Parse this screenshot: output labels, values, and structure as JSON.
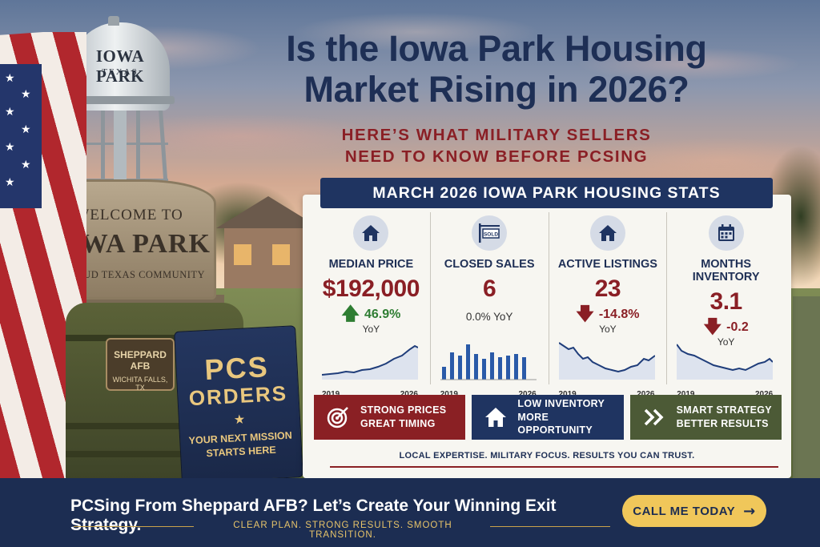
{
  "headline": {
    "line1": "Is the Iowa Park Housing",
    "line2": "Market Rising in 2026?"
  },
  "subheadline": {
    "line1": "HERE’S WHAT MILITARY SELLERS",
    "line2": "NEED TO KNOW BEFORE PCSING"
  },
  "scene": {
    "water_tower": {
      "line1": "IOWA PARK",
      "line2": "TEXAS"
    },
    "welcome_sign": {
      "line1": "WELCOME TO",
      "line2": "IOWA PARK",
      "line3": "A PROUD TEXAS COMMUNITY"
    },
    "bag_patch": {
      "line1": "SHEPPARD AFB",
      "line2": "WICHITA FALLS, TX"
    },
    "folder": {
      "line1": "PCS",
      "line2": "ORDERS",
      "line3": "YOUR NEXT MISSION",
      "line4": "STARTS HERE"
    }
  },
  "stats_card": {
    "title": "MARCH 2026 IOWA PARK HOUSING STATS",
    "stats": [
      {
        "label": "MEDIAN PRICE",
        "value": "$192,000",
        "change": "46.9%",
        "change_unit": "YoY",
        "direction": "up",
        "icon": "house-icon",
        "axis_start": "2019",
        "axis_end": "2026"
      },
      {
        "label": "CLOSED SALES",
        "value": "6",
        "change": "0.0% YoY",
        "direction": "flat",
        "icon": "sold-sign-icon",
        "icon_text": "SOLD",
        "axis_start": "2019",
        "axis_end": "2026"
      },
      {
        "label": "ACTIVE LISTINGS",
        "value": "23",
        "change": "-14.8%",
        "change_unit": "YoY",
        "direction": "down",
        "icon": "house-icon",
        "axis_start": "2019",
        "axis_end": "2026"
      },
      {
        "label": "MONTHS INVENTORY",
        "value": "3.1",
        "change": "-0.2",
        "change_unit": "YoY",
        "direction": "down",
        "icon": "calendar-icon",
        "axis_start": "2019",
        "axis_end": "2026"
      }
    ],
    "callouts": [
      {
        "line1": "STRONG PRICES",
        "line2": "GREAT TIMING",
        "icon": "target-icon"
      },
      {
        "line1": "LOW INVENTORY",
        "line2": "MORE OPPORTUNITY",
        "icon": "house-icon"
      },
      {
        "line1": "SMART STRATEGY",
        "line2": "BETTER RESULTS",
        "icon": "double-chevron-icon"
      }
    ],
    "tagline": "LOCAL EXPERTISE. MILITARY FOCUS. RESULTS YOU CAN TRUST."
  },
  "bottom_banner": {
    "main": "PCSing From Sheppard AFB? Let’s Create Your Winning Exit Strategy.",
    "sub": "CLEAR PLAN. STRONG RESULTS. SMOOTH TRANSITION.",
    "cta_label": "CALL ME TODAY",
    "cta_arrow": "→"
  },
  "colors": {
    "navy": "#1f3461",
    "maroon": "#8a1f25",
    "green_up": "#2e7d32",
    "olive": "#4c5a36",
    "gold": "#f0c75a"
  }
}
